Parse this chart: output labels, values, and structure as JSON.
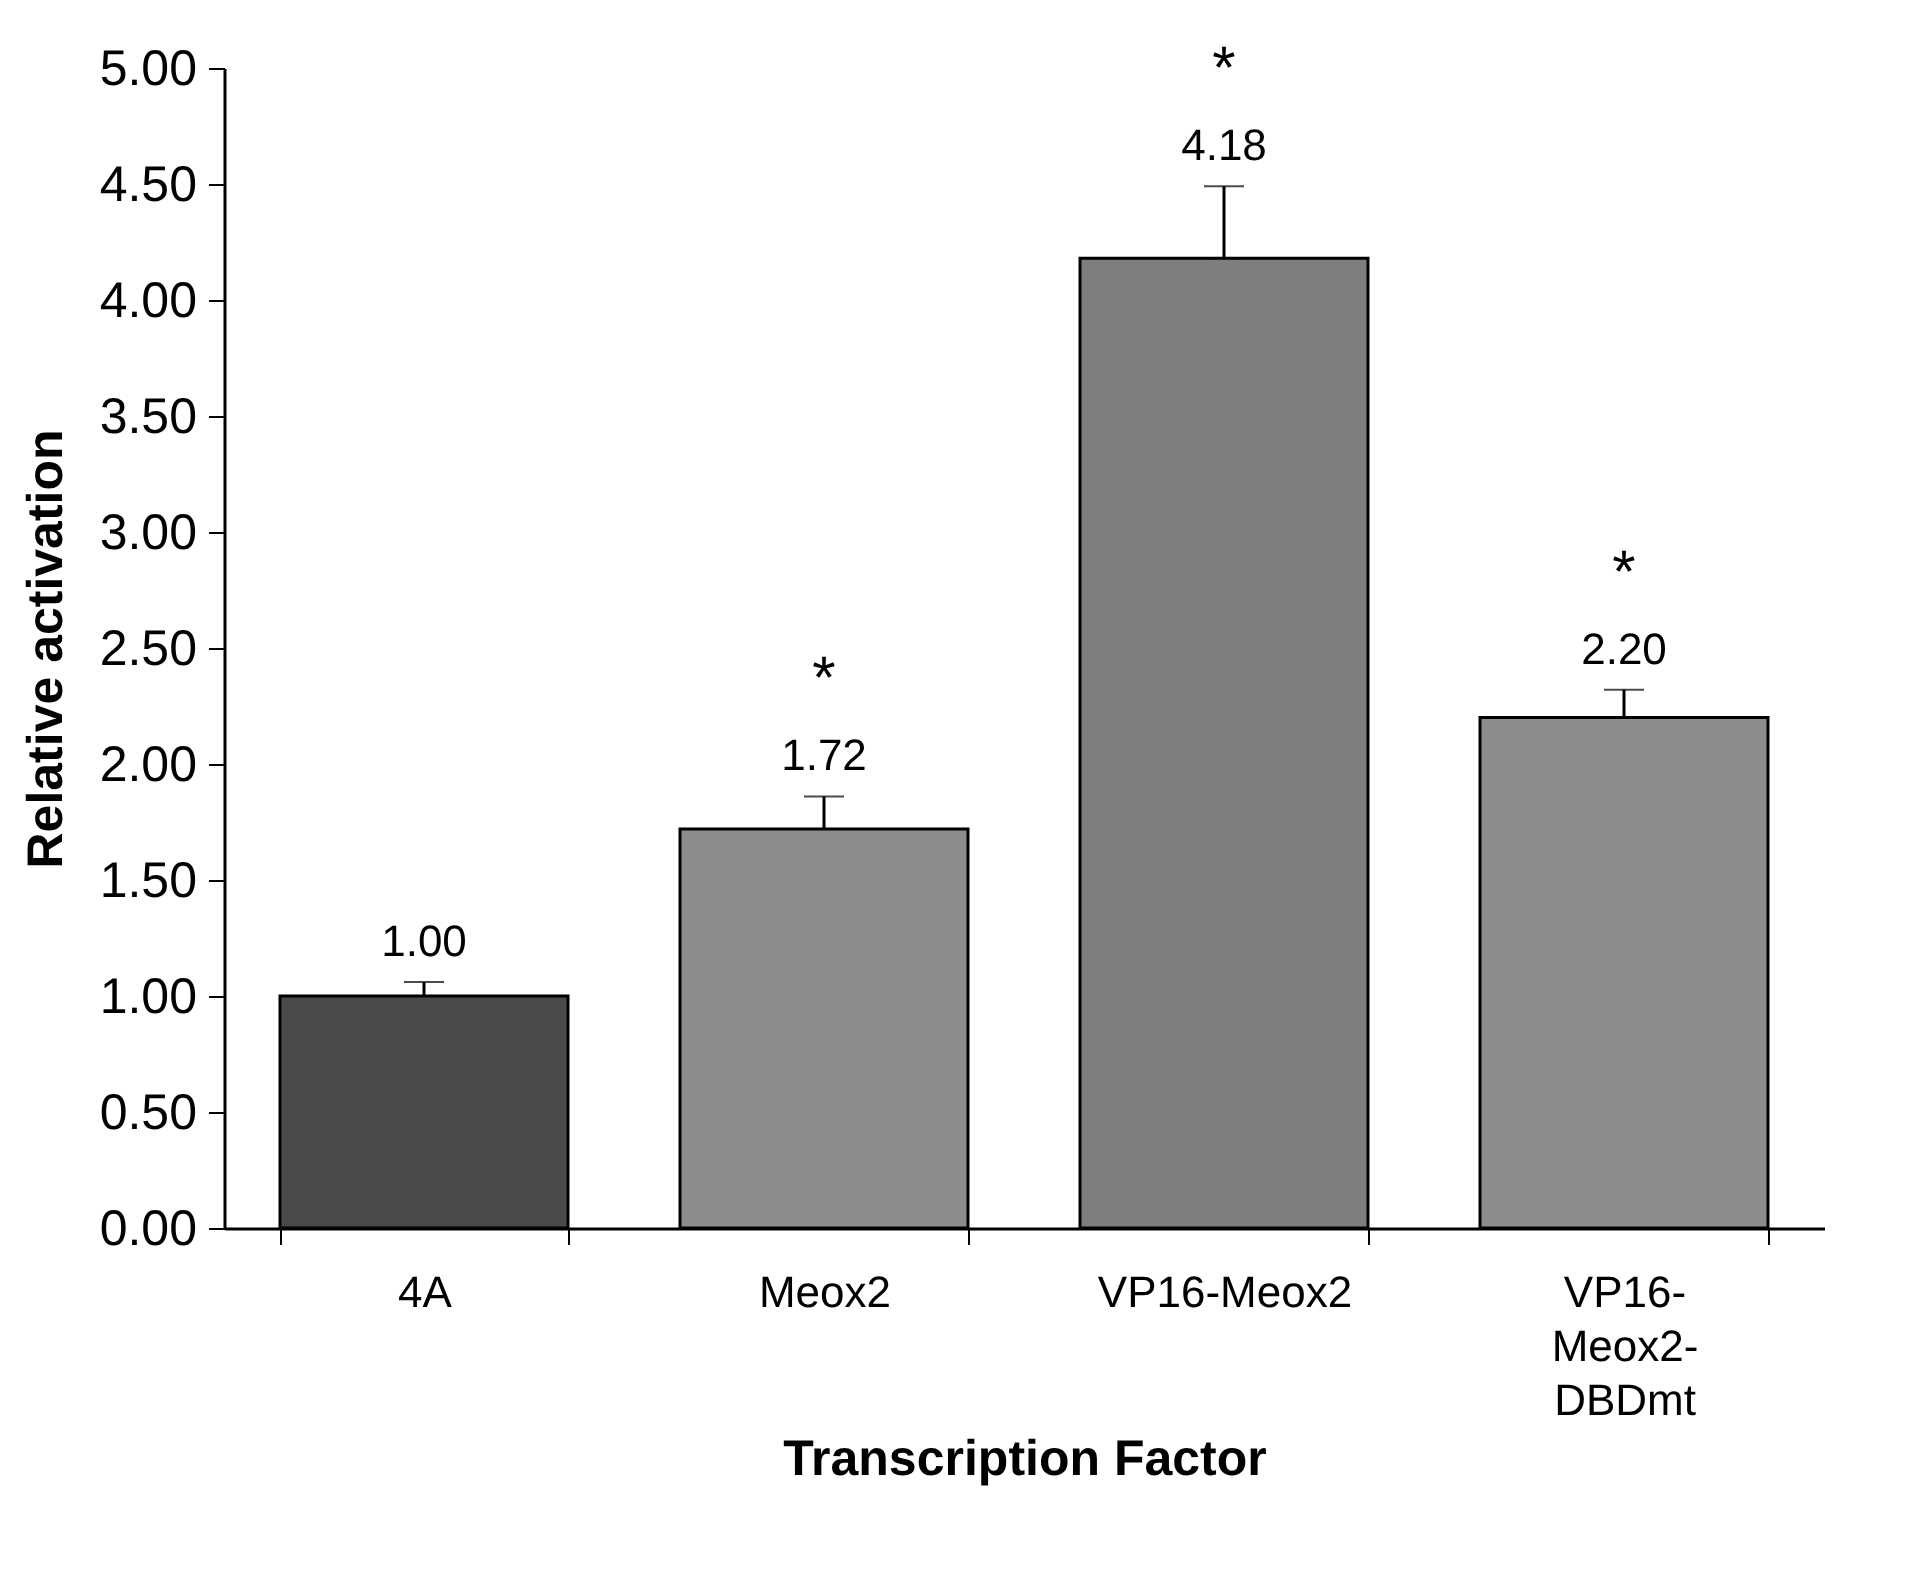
{
  "chart_data": {
    "type": "bar",
    "xlabel": "Transcription Factor",
    "ylabel": "Relative activation",
    "categories": [
      "4A",
      "Meox2",
      "VP16-Meox2",
      "VP16-Meox2-DBDmt"
    ],
    "values": [
      1.0,
      1.72,
      4.18,
      2.2
    ],
    "colors": [
      "#4a4a4a",
      "#8c8c8c",
      "#7e7e7e",
      "#8c8c8c"
    ],
    "errors": [
      0.06,
      0.14,
      0.31,
      0.12
    ],
    "value_labels": [
      "1.00",
      "1.72",
      "4.18",
      "2.20"
    ],
    "annotations": [
      {
        "text": "*",
        "x": "Meox2",
        "y": 1.72
      },
      {
        "text": "*",
        "x": "VP16-Meox2",
        "y": 4.18
      },
      {
        "text": "*",
        "x": "VP16-Meox2-DBDmt",
        "y": 2.2
      }
    ],
    "ylim": [
      0,
      5
    ],
    "yticks": [
      {
        "value": 0,
        "label": "0.00"
      },
      {
        "value": 0.5,
        "label": "0.50"
      },
      {
        "value": 1,
        "label": "1.00"
      },
      {
        "value": 1.5,
        "label": "1.50"
      },
      {
        "value": 2,
        "label": "2.00"
      },
      {
        "value": 2.5,
        "label": "2.50"
      },
      {
        "value": 3,
        "label": "3.00"
      },
      {
        "value": 3.5,
        "label": "3.50"
      },
      {
        "value": 4,
        "label": "4.00"
      },
      {
        "value": 4.5,
        "label": "4.50"
      },
      {
        "value": 5,
        "label": "5.00"
      }
    ],
    "grid": false,
    "legend": false
  }
}
